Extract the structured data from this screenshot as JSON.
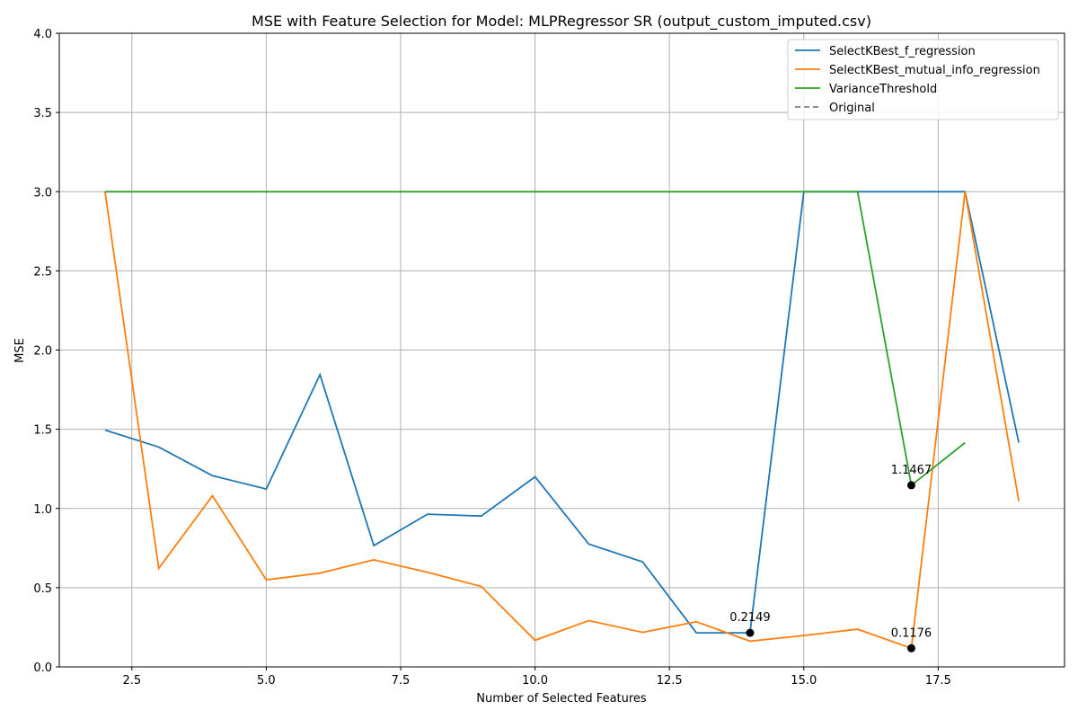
{
  "chart_data": {
    "type": "line",
    "title": "MSE with Feature Selection for Model: MLPRegressor SR (output_custom_imputed.csv)",
    "xlabel": "Number of Selected Features",
    "ylabel": "MSE",
    "xlim": [
      1.15,
      19.85
    ],
    "ylim": [
      0,
      4
    ],
    "xticks": [
      2.5,
      5.0,
      7.5,
      10.0,
      12.5,
      15.0,
      17.5
    ],
    "xtick_labels": [
      "2.5",
      "5.0",
      "7.5",
      "10.0",
      "12.5",
      "15.0",
      "17.5"
    ],
    "yticks": [
      0,
      0.5,
      1.0,
      1.5,
      2.0,
      2.5,
      3.0,
      3.5,
      4.0
    ],
    "ytick_labels": [
      "0.0",
      "0.5",
      "1.0",
      "1.5",
      "2.0",
      "2.5",
      "3.0",
      "3.5",
      "4.0"
    ],
    "grid": true,
    "legend_position": "top-right",
    "series": [
      {
        "name": "SelectKBest_f_regression",
        "color": "#1f77b4",
        "dash": "solid",
        "x": [
          2,
          3,
          4,
          5,
          6,
          7,
          8,
          9,
          10,
          11,
          12,
          13,
          14,
          15,
          16,
          17,
          18,
          19
        ],
        "y": [
          1.495,
          1.388,
          1.207,
          1.123,
          1.845,
          0.766,
          0.964,
          0.952,
          1.2,
          0.775,
          0.663,
          0.215,
          0.2149,
          3.0,
          3.0,
          3.0,
          3.0,
          1.415
        ]
      },
      {
        "name": "SelectKBest_mutual_info_regression",
        "color": "#ff7f0e",
        "dash": "solid",
        "x": [
          2,
          3,
          4,
          5,
          6,
          7,
          8,
          9,
          10,
          11,
          12,
          13,
          14,
          15,
          16,
          17,
          18,
          19
        ],
        "y": [
          3.0,
          0.622,
          1.08,
          0.55,
          0.592,
          0.676,
          0.597,
          0.508,
          0.168,
          0.292,
          0.218,
          0.285,
          0.162,
          0.198,
          0.238,
          0.1176,
          3.0,
          1.047
        ]
      },
      {
        "name": "VarianceThreshold",
        "color": "#2ca02c",
        "dash": "solid",
        "x": [
          2,
          3,
          4,
          5,
          6,
          7,
          8,
          9,
          10,
          11,
          12,
          13,
          14,
          15,
          16,
          17,
          18
        ],
        "y": [
          3.0,
          3.0,
          3.0,
          3.0,
          3.0,
          3.0,
          3.0,
          3.0,
          3.0,
          3.0,
          3.0,
          3.0,
          3.0,
          3.0,
          3.0,
          1.1467,
          1.415
        ]
      },
      {
        "name": "Original",
        "color": "#808080",
        "dash": "dashed",
        "x": [],
        "y": []
      }
    ],
    "annotations": [
      {
        "x": 14,
        "y": 0.2149,
        "label": "0.2149",
        "marker_color": "#000000"
      },
      {
        "x": 17,
        "y": 1.1467,
        "label": "1.1467",
        "marker_color": "#000000"
      },
      {
        "x": 17,
        "y": 0.1176,
        "label": "0.1176",
        "marker_color": "#000000"
      }
    ]
  }
}
